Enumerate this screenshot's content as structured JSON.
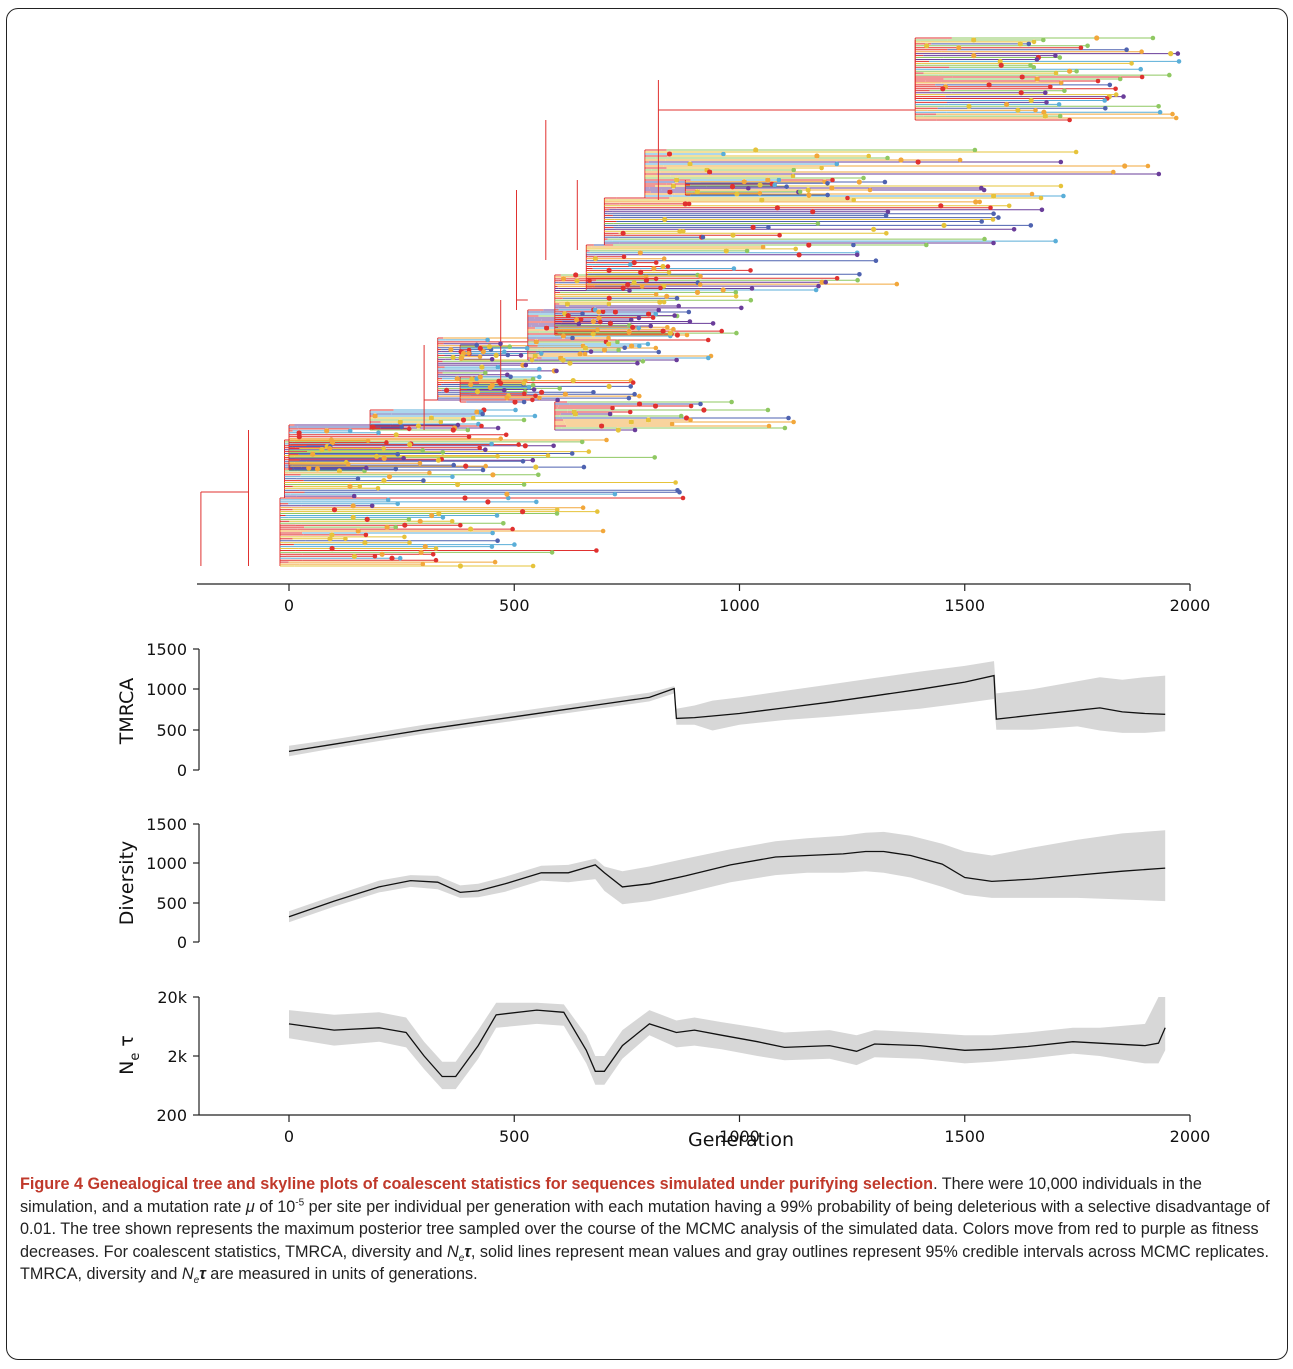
{
  "chart_data": [
    {
      "type": "tree",
      "title": "",
      "xticks": [
        "0",
        "500",
        "1000",
        "1500",
        "2000"
      ],
      "xlim": [
        -200,
        2000
      ],
      "node_colors": [
        "#e0312f",
        "#f2a73b",
        "#e6c33a",
        "#8fc862",
        "#5aaed8",
        "#4e62b0",
        "#6a3d9a"
      ],
      "color_meaning": "Colors move from red to purple as fitness decreases"
    },
    {
      "type": "line",
      "ylabel": "TMRCA",
      "yticks": [
        "0",
        "500",
        "1000",
        "1500"
      ],
      "ylim": [
        0,
        1500
      ],
      "x": [
        0,
        100,
        200,
        300,
        400,
        500,
        600,
        700,
        800,
        855,
        860,
        900,
        940,
        1000,
        1100,
        1200,
        1300,
        1400,
        1500,
        1565,
        1570,
        1650,
        1750,
        1800,
        1850,
        1900,
        1945
      ],
      "mean": [
        230,
        320,
        410,
        500,
        580,
        660,
        740,
        820,
        900,
        1010,
        640,
        650,
        670,
        700,
        770,
        840,
        920,
        1000,
        1090,
        1170,
        630,
        680,
        740,
        770,
        720,
        700,
        690
      ],
      "lower": [
        170,
        270,
        360,
        450,
        530,
        610,
        690,
        770,
        850,
        950,
        560,
        560,
        490,
        560,
        620,
        660,
        710,
        760,
        830,
        880,
        500,
        500,
        540,
        490,
        460,
        460,
        480
      ],
      "upper": [
        300,
        380,
        470,
        560,
        640,
        720,
        800,
        880,
        960,
        1040,
        760,
        800,
        860,
        900,
        980,
        1060,
        1140,
        1220,
        1290,
        1350,
        950,
        1000,
        1100,
        1150,
        1120,
        1150,
        1170
      ]
    },
    {
      "type": "line",
      "ylabel": "Diversity",
      "yticks": [
        "0",
        "500",
        "1000",
        "1500"
      ],
      "ylim": [
        0,
        1500
      ],
      "x": [
        0,
        100,
        200,
        270,
        330,
        380,
        420,
        480,
        560,
        620,
        680,
        700,
        740,
        800,
        880,
        980,
        1080,
        1150,
        1230,
        1280,
        1320,
        1380,
        1450,
        1500,
        1560,
        1650,
        1750,
        1850,
        1945
      ],
      "mean": [
        320,
        520,
        700,
        780,
        760,
        630,
        650,
        740,
        880,
        880,
        980,
        880,
        700,
        740,
        840,
        980,
        1080,
        1100,
        1120,
        1150,
        1150,
        1100,
        990,
        820,
        770,
        800,
        850,
        900,
        940
      ],
      "lower": [
        250,
        450,
        630,
        700,
        670,
        560,
        570,
        640,
        780,
        760,
        800,
        650,
        480,
        520,
        620,
        760,
        850,
        880,
        880,
        900,
        880,
        820,
        700,
        600,
        560,
        560,
        560,
        540,
        520
      ],
      "upper": [
        390,
        590,
        780,
        850,
        840,
        720,
        740,
        830,
        970,
        980,
        1060,
        960,
        900,
        960,
        1060,
        1180,
        1280,
        1320,
        1350,
        1390,
        1400,
        1350,
        1250,
        1150,
        1100,
        1200,
        1300,
        1380,
        1420
      ]
    },
    {
      "type": "line",
      "ylabel": "N",
      "ylabel_sub": "e",
      "ylabel_suffix": " τ",
      "log_y": true,
      "yticks": [
        "200",
        "2k",
        "20k"
      ],
      "ylim": [
        200,
        20000
      ],
      "x": [
        0,
        100,
        200,
        260,
        300,
        340,
        370,
        420,
        460,
        550,
        610,
        660,
        680,
        700,
        740,
        800,
        860,
        900,
        960,
        1040,
        1100,
        1200,
        1260,
        1300,
        1400,
        1500,
        1560,
        1640,
        1740,
        1800,
        1900,
        1930,
        1945
      ],
      "mean": [
        7000,
        5500,
        6000,
        5000,
        2000,
        900,
        900,
        3000,
        10000,
        12000,
        11000,
        2500,
        1100,
        1100,
        3000,
        7000,
        5000,
        5500,
        4500,
        3500,
        2800,
        3000,
        2400,
        3200,
        3000,
        2500,
        2600,
        2900,
        3500,
        3300,
        3000,
        3300,
        6000
      ],
      "lower": [
        4000,
        3000,
        3500,
        2800,
        1200,
        550,
        550,
        1800,
        6000,
        7000,
        6500,
        1500,
        650,
        650,
        1800,
        4500,
        2800,
        3000,
        2600,
        2000,
        1700,
        1800,
        1400,
        1900,
        1800,
        1500,
        1600,
        1800,
        2200,
        2000,
        1500,
        1500,
        2500
      ],
      "upper": [
        12000,
        10000,
        11000,
        9000,
        3500,
        1600,
        1600,
        5500,
        16000,
        16000,
        15000,
        4500,
        2000,
        2000,
        5500,
        12000,
        8000,
        9000,
        7500,
        6000,
        5000,
        5500,
        4500,
        5500,
        5000,
        4500,
        4500,
        5000,
        6000,
        6000,
        7000,
        20000,
        20000
      ]
    }
  ],
  "shared_xticks": [
    "0",
    "500",
    "1000",
    "1500",
    "2000"
  ],
  "xlabel": "Generation",
  "caption": {
    "title": "Figure 4 Genealogical tree and skyline plots of coalescent statistics for sequences simulated under purifying selection",
    "p1": ". There were 10,000 individuals in the simulation, and a mutation rate ",
    "mu": "μ",
    "p2": " of 10",
    "exp": "-5",
    "p3": " per site per individual per generation with each mutation having a 99% probability of being deleterious with a selective disadvantage of 0.01. The tree shown represents the maximum posterior tree sampled over the course of the MCMC analysis of the simulated data. Colors move from red to purple as fitness decreases. For coalescent statistics, TMRCA, diversity and ",
    "ne_n": "N",
    "ne_e": "e",
    "tau": "τ",
    "p4": ", solid lines represent mean values and gray outlines represent 95% credible intervals across MCMC replicates. TMRCA, diversity and ",
    "p5": " are measured in units of generations."
  },
  "colors": {
    "band": "#d7d7d7",
    "line": "#111111",
    "axis": "#222222"
  }
}
